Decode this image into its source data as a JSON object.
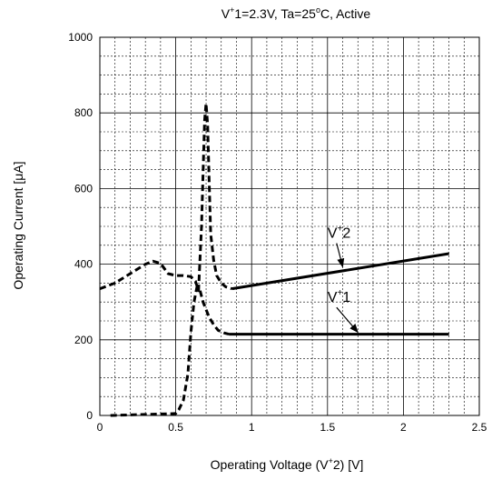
{
  "chart_data": {
    "type": "line",
    "title": {
      "pre": "V",
      "sup1": "+",
      "mid": "1=2.3V, Ta=25",
      "sup2": "o",
      "post": "C, Active"
    },
    "xlabel": {
      "pre": "Operating Voltage (V",
      "sup": "+",
      "post": "2) [V]"
    },
    "ylabel": "Operating Current [μA]",
    "xlim": [
      0,
      2.5
    ],
    "ylim": [
      0,
      1000
    ],
    "x_ticks": [
      0,
      0.5,
      1,
      1.5,
      2,
      2.5
    ],
    "x_tick_labels": [
      "0",
      "0.5",
      "1",
      "1.5",
      "2",
      "2.5"
    ],
    "y_ticks": [
      0,
      200,
      400,
      600,
      800,
      1000
    ],
    "y_tick_labels": [
      "0",
      "200",
      "400",
      "600",
      "800",
      "1000"
    ],
    "minor_grid": {
      "x_step": 0.1,
      "y_step": 50
    },
    "grid": true,
    "series": [
      {
        "name": {
          "pre": "V",
          "sup": "+",
          "post": "2"
        },
        "color": "#000000",
        "dashed": {
          "x": [
            0,
            0.1,
            0.2,
            0.3,
            0.35,
            0.4,
            0.45,
            0.5,
            0.55,
            0.6,
            0.63,
            0.65,
            0.67,
            0.69,
            0.7,
            0.71,
            0.72,
            0.73,
            0.75,
            0.77,
            0.8,
            0.83,
            0.87
          ],
          "y": [
            335,
            350,
            375,
            400,
            408,
            402,
            375,
            370,
            370,
            367,
            355,
            330,
            500,
            780,
            825,
            770,
            620,
            480,
            410,
            370,
            350,
            340,
            335
          ]
        },
        "solid": {
          "x": [
            0.87,
            2.3
          ],
          "y": [
            335,
            428
          ]
        }
      },
      {
        "name": {
          "pre": "V",
          "sup": "+",
          "post": "1"
        },
        "color": "#000000",
        "dashed": {
          "x": [
            0.07,
            0.5,
            0.52,
            0.55,
            0.58,
            0.6,
            0.62,
            0.64,
            0.66,
            0.68,
            0.7,
            0.72,
            0.75,
            0.78,
            0.82,
            0.85
          ],
          "y": [
            0,
            5,
            15,
            40,
            110,
            220,
            300,
            340,
            330,
            300,
            280,
            260,
            240,
            225,
            218,
            215
          ]
        },
        "solid": {
          "x": [
            0.85,
            2.3
          ],
          "y": [
            215,
            215
          ]
        }
      }
    ],
    "annotations": [
      {
        "series": 0,
        "label_pos": [
          1.5,
          470
        ],
        "arrow_to": [
          1.6,
          393
        ]
      },
      {
        "series": 1,
        "label_pos": [
          1.5,
          300
        ],
        "arrow_to": [
          1.7,
          220
        ]
      }
    ]
  }
}
